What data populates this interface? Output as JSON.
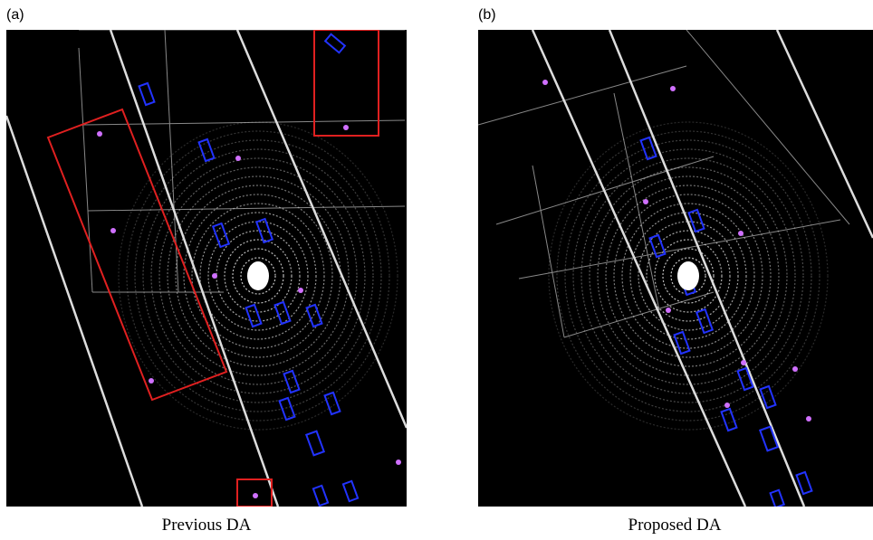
{
  "panels": [
    {
      "label": "(a)",
      "caption": "Previous DA"
    },
    {
      "label": "(b)",
      "caption": "Proposed DA"
    }
  ]
}
